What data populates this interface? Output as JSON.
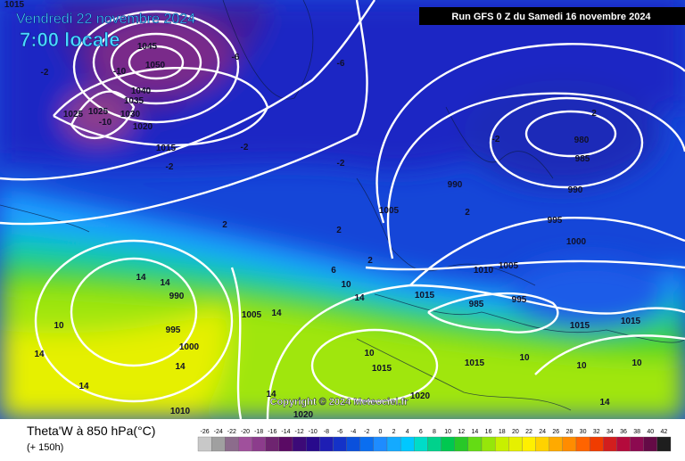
{
  "header": {
    "date": "Vendredi 22 novembre 2024",
    "time": "7:00 locale",
    "run": "Run GFS 0 Z du Samedi 16 novembre 2024"
  },
  "map": {
    "copyright": "Copyright © 2024 Meteociel.fr",
    "labels": [
      "1045",
      "1050",
      "1040",
      "1035",
      "1030",
      "1025",
      "1020",
      "1025",
      "1015",
      "-10",
      "-10",
      "-6",
      "-6",
      "-2",
      "-2",
      "-2",
      "-2",
      "-2",
      "2",
      "2",
      "2",
      "2",
      "2",
      "980",
      "985",
      "990",
      "990",
      "995",
      "1000",
      "1005",
      "1010",
      "1005",
      "1015",
      "985",
      "995",
      "1015",
      "1015",
      "995",
      "990",
      "1000",
      "1005",
      "1015",
      "1020",
      "1020",
      "1015",
      "1010",
      "1015",
      "6",
      "10",
      "10",
      "10",
      "14",
      "14",
      "14",
      "14",
      "14",
      "14",
      "14",
      "14",
      "10",
      "10",
      "10",
      "14"
    ]
  },
  "legend": {
    "title": "Theta'W à 850 hPa(°C)",
    "subtitle": "(+ 150h)",
    "scale": [
      {
        "label": "-26",
        "color": "#c8c8c8"
      },
      {
        "label": "-24",
        "color": "#a0a0a0"
      },
      {
        "label": "-22",
        "color": "#8c6c8c"
      },
      {
        "label": "-20",
        "color": "#a0509c"
      },
      {
        "label": "-18",
        "color": "#8c3c8c"
      },
      {
        "label": "-16",
        "color": "#6e2470"
      },
      {
        "label": "-14",
        "color": "#5a0a64"
      },
      {
        "label": "-12",
        "color": "#3c0a78"
      },
      {
        "label": "-10",
        "color": "#280a8c"
      },
      {
        "label": "-8",
        "color": "#1e1eb4"
      },
      {
        "label": "-6",
        "color": "#1432c8"
      },
      {
        "label": "-4",
        "color": "#0a50dc"
      },
      {
        "label": "-2",
        "color": "#0a6ef0"
      },
      {
        "label": "0",
        "color": "#1e8cff"
      },
      {
        "label": "2",
        "color": "#14aaff"
      },
      {
        "label": "4",
        "color": "#00c8ff"
      },
      {
        "label": "6",
        "color": "#00dcc8"
      },
      {
        "label": "8",
        "color": "#00d28c"
      },
      {
        "label": "10",
        "color": "#00c850"
      },
      {
        "label": "12",
        "color": "#28c828"
      },
      {
        "label": "14",
        "color": "#64dc14"
      },
      {
        "label": "16",
        "color": "#96e60a"
      },
      {
        "label": "18",
        "color": "#c8f000"
      },
      {
        "label": "20",
        "color": "#e6f000"
      },
      {
        "label": "22",
        "color": "#fff000"
      },
      {
        "label": "24",
        "color": "#ffd200"
      },
      {
        "label": "26",
        "color": "#ffaa00"
      },
      {
        "label": "28",
        "color": "#ff8c00"
      },
      {
        "label": "30",
        "color": "#ff6400"
      },
      {
        "label": "32",
        "color": "#f03c00"
      },
      {
        "label": "34",
        "color": "#d21e1e"
      },
      {
        "label": "36",
        "color": "#b40a3c"
      },
      {
        "label": "38",
        "color": "#8c0a50"
      },
      {
        "label": "40",
        "color": "#640a46"
      },
      {
        "label": "42",
        "color": "#1e1e1e"
      }
    ]
  }
}
